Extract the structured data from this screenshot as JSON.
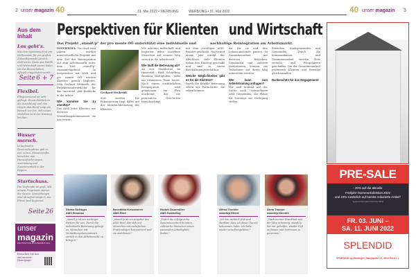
{
  "header": {
    "left_page": "2",
    "right_page": "3",
    "brand_light": "unser",
    "brand_bold": "magazin",
    "anniversary": "40",
    "date_left": "31. Mai 2022 • WERBUNG",
    "date_right": "WERBUNG • 31. Mai 2022"
  },
  "sidebar": {
    "title": "Aus dem Inhalt",
    "items": [
      {
        "title": "Los geht's.",
        "text": "Mit dem Spatenstich ist ein Meilenstein für ein großes Zukunftsprojekt gesetzt. Zahlreiche Gäste aus Politik und Wirtschaft waren dabei, als das Bauvorhaben offiziell eingeläutet wurde.",
        "page_prefix": "Seite",
        "page": "6 + 7"
      },
      {
        "title": "Flexibel.",
        "text": "Pflegepersonal ist sehr gefragt. Einen Einblick in die Ausbildung und den Weg in den Beruf zeigt ein Besuch vor Ort. Mit neuen Modellen wird der Einstieg leichter.",
        "page_prefix": "",
        "page": ""
      },
      {
        "title": "Wasser marsch.",
        "text": "In laufenden Feuerwehrjahren gab es viel zu tun. Einsatzkräfte berichten von Herausforderungen, Ausrüstung und Zusammenhalt in der Region.",
        "page_prefix": "",
        "page": ""
      },
      {
        "title": "Startschuss.",
        "text": "Die Vorfreude ist groß: Mit neuem Programm startet die Saison. Anmeldungen sind ab sofort möglich, die Plätze sind begrenzt.",
        "page_prefix": "Seite",
        "page": "26"
      }
    ],
    "promo": {
      "brand_light": "unser",
      "brand_bold": "magazin",
      "tagline": "DIE POSITIVE WOCHENZEITUNG",
      "text": "Besuchen Sie uns auf unserer Homepage!"
    }
  },
  "article": {
    "title_left": "Perspektiven für Klienten",
    "title_right": "und Wirtschaft",
    "subtitle_left": "Das Projekt „standUp\" der pro mente OÖ unterstützt eine individuelle und",
    "subtitle_right": "nachhaltige Reintegration am Arbeitsmarkt.",
    "photo_caption": "Gerhard Weiberdt",
    "columns": [
      {
        "lead": "INNVIERTEL.",
        "text": "Vor rund zwei Jahren wurden unterschiedliche Projekte mit dem Ziel der Reintegration auf dem Arbeitsmarkt unter dem Titel „standUp\" zusammengefasst. In Kooperation mit AMS und pro mente OÖ werden Klienten gezielt begleitet. DSA Gerhard Weiberdt, der Projektverantwortliche für das Innviertel, gibt Einblicke in die Arbeit.",
        "head": "Wie kommen Sie zu standUp?",
        "text2": "Das AMS leitet Klienten mit diversen Vermittlungshemmnissen an uns weiter."
      },
      {
        "text": "",
        "head": "",
        "text2": "dort werden. Die Fokussierung liegt dabei auf der Mehrfachbelastung der Klienten."
      },
      {
        "text": "Wir arbeiten individuell und begleiten jeden einzelnen Menschen auf seinem Weg zurück in die Arbeitswelt.",
        "head": "Wie läuft die Betreuung ab?",
        "text2": "An vier Standorten im Innviertel – Ried, Schärding, Braunau, Mattighofen – steht ein erfahrenes Team bereit. Nach einem ausführlichen Erstgespräch wird gemeinsam ein Plan erarbeitet, der die persönliche Geschichte berücksichtigt."
      },
      {
        "text": "mit dem jeweiligen AMS-Berater geschieht. Nach rund einem Jahr erfolgt der Abschluss, viele Klienten haben den Einstieg geschafft und sind in einem Beschäftigungsverhältnis.",
        "head": "Welche Möglichkeiten gibt es für die Klienten?",
        "text2": "Durch die flexible Betreuung sehen wir Fortschritte, die sehen können."
      },
      {
        "text": "die für sie und ihre Lebensumstände passen. In Zusammenarbeit mit diversen Betrieben, Gemeinden und anderen Institutionen können die Teilnehmer auf ihrem Weg unterstützt werden.",
        "head": "Wer kann zum Arbeitstraining anfragen?",
        "text2": "Wir sind laufend auf der Suche nach Unternehmen oder Gemeinden, die Plätze für Trainings zur Verfügung stellen."
      },
      {
        "text": "Betrieben, Stadtgemeinden und Gemeinden. Durch die Kommunikation und Zusammenarbeit werden Ziele erreicht und Perspektiven geschaffen. Von der Zusammenarbeit profitieren Klienten und Betriebe gleichermaßen.",
        "head": "Dankeschön für das Engagement!",
        "text2": ""
      }
    ]
  },
  "cards": [
    {
      "name": "Stefan Sollinger",
      "org": "AMS Braunau",
      "quote": "„standUp ist ein wichtiger Partner für uns. Durch die individuelle Betreuung gelingt es, Menschen mit Vermittlungshemmnissen zurück in den Arbeitsmarkt zu bringen.\""
    },
    {
      "name": "Benedikta Kreuzbicher",
      "org": "AMS Ried",
      "quote": "„standUp ist ein Angebot des AMS Ried, das sich auf Menschen mit mehrfachen Problemlagen konzentriert und sie stabilisiert.\""
    },
    {
      "name": "Rudolf Zaunmüller",
      "org": "AMS Schärding",
      "quote": "„Durch die erfolgreiche Zusammenarbeit konnten zahlreiche Menschen einen passenden Arbeitsplatz finden.\""
    },
    {
      "name": "Alfred Tischler",
      "org": "standUp Klient",
      "quote": "„Ich bin wirklich froh und dankbar, dass ich diese Chance bekommen habe. Ich habe wieder eine Perspektive.\""
    },
    {
      "name": "Anna Trauner",
      "org": "standUp Klientin",
      "quote": "„Nach meiner Krankheit war der Weg schwierig. standUp hat mir geholfen, wieder Fuß zu fassen und Vertrauen zu gewinnen.\""
    }
  ],
  "ad": {
    "headline": "PRE-SALE",
    "offer1": "- 20% auf die aktuelle",
    "offer2": "Frühjahr-/Sommerkollektion 2022",
    "offer3": "und 10% zusätzlich auf bereits reduzierte Artikel*",
    "fine": "*ausgenommen gekennzeichnete Artikel",
    "date1": "FR. 03. JUNI –",
    "date2": "SA. 11. JUNI 2022",
    "logo": "SPLENDID",
    "address": "SPLENDID by Matringer, Hauptplatz 20, 4910 Ried i. I.",
    "color_red": "#e03b36",
    "color_dark": "#2d2a33"
  },
  "colors": {
    "accent": "#8a2b7b"
  }
}
